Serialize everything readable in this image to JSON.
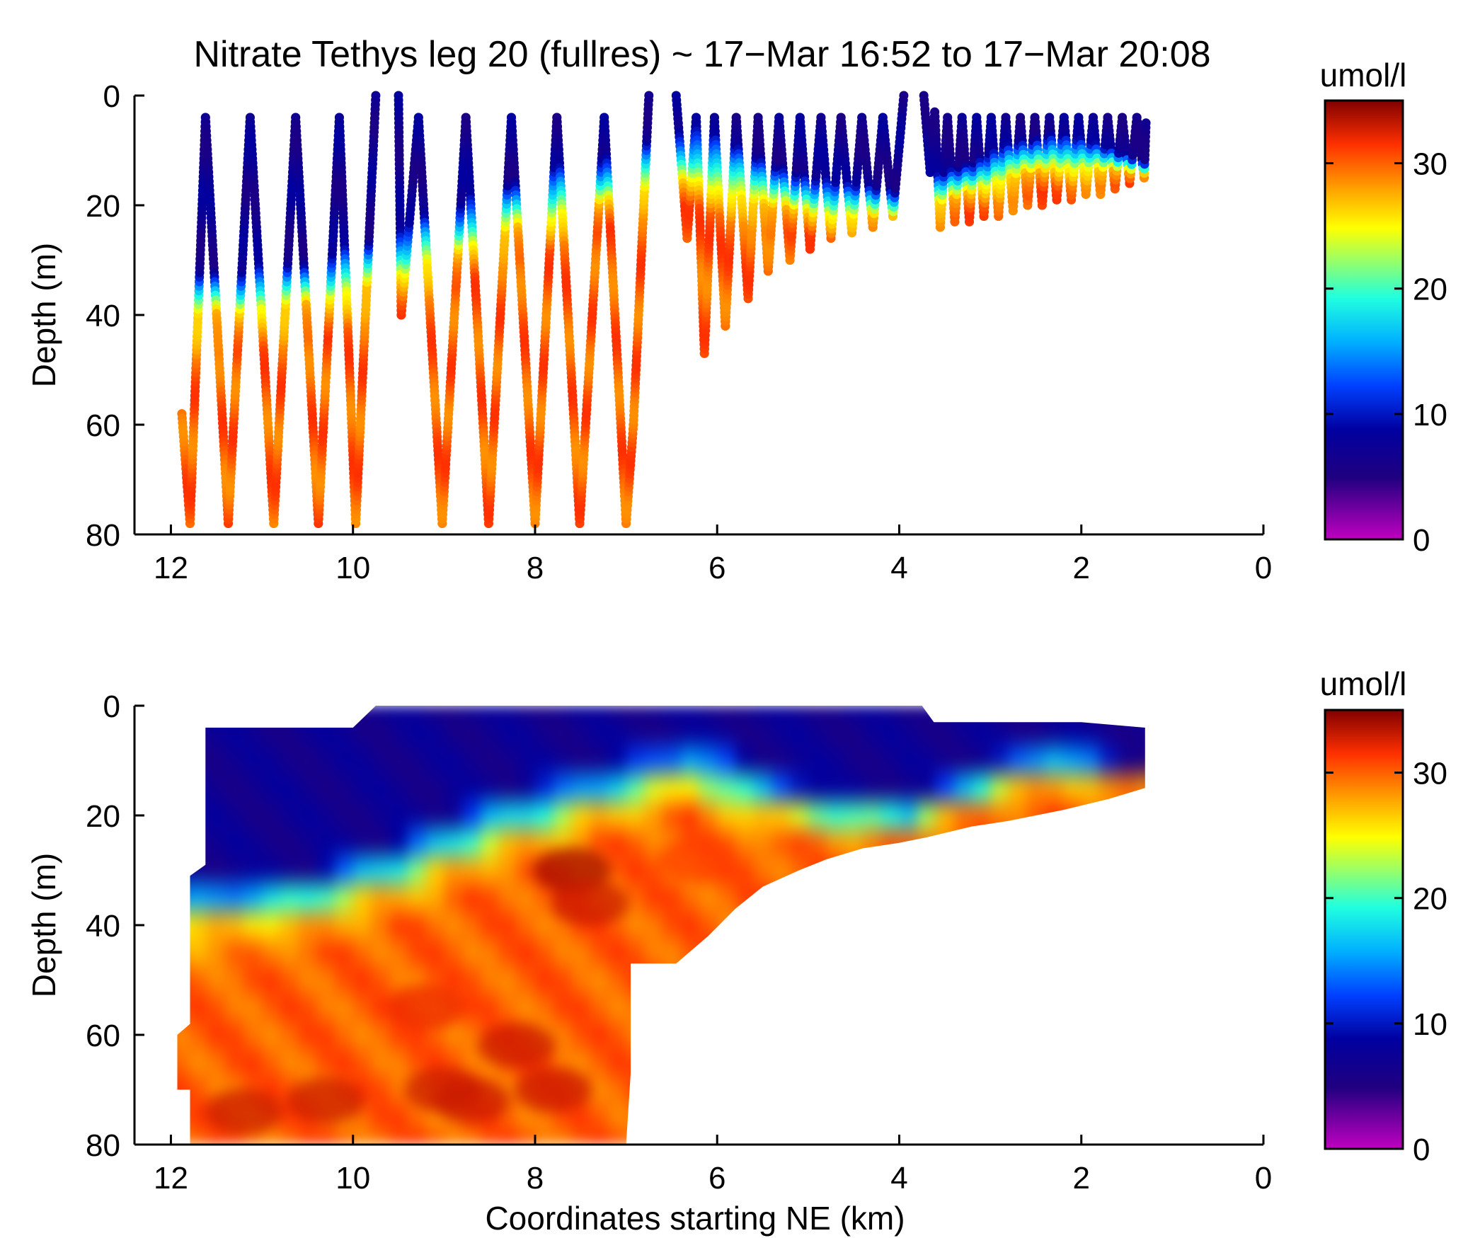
{
  "chart_data": [
    {
      "type": "scatter",
      "title": "Nitrate Tethys leg 20 (fullres) ~ 17−Mar 16:52 to 17−Mar 20:08",
      "xlabel": "",
      "ylabel": "Depth (m)",
      "xlim": [
        12.4,
        0
      ],
      "ylim": [
        0,
        80
      ],
      "y_reversed": true,
      "xticks": [
        "12",
        "10",
        "8",
        "6",
        "4",
        "2",
        "0"
      ],
      "yticks": [
        "0",
        "20",
        "40",
        "60",
        "80"
      ],
      "colorbar": {
        "label": "umol/l",
        "ticks": [
          "0",
          "10",
          "20",
          "30"
        ],
        "range": [
          0,
          35
        ],
        "colormap": "jet-magenta"
      },
      "track": [
        [
          11.88,
          58
        ],
        [
          11.79,
          78
        ],
        [
          11.62,
          4
        ],
        [
          11.37,
          78
        ],
        [
          11.13,
          4
        ],
        [
          10.87,
          78
        ],
        [
          10.63,
          4
        ],
        [
          10.38,
          78
        ],
        [
          10.15,
          4
        ],
        [
          9.97,
          78
        ],
        [
          9.75,
          0
        ],
        [
          9.5,
          0
        ],
        [
          9.47,
          40
        ],
        [
          9.28,
          4
        ],
        [
          9.02,
          78
        ],
        [
          8.76,
          4
        ],
        [
          8.51,
          78
        ],
        [
          8.26,
          4
        ],
        [
          8.0,
          78
        ],
        [
          7.76,
          4
        ],
        [
          7.51,
          78
        ],
        [
          7.24,
          4
        ],
        [
          7.0,
          78
        ],
        [
          6.92,
          60
        ],
        [
          6.75,
          0
        ],
        [
          6.45,
          0
        ],
        [
          6.33,
          26
        ],
        [
          6.23,
          4
        ],
        [
          6.14,
          47
        ],
        [
          6.03,
          4
        ],
        [
          5.91,
          42
        ],
        [
          5.79,
          4
        ],
        [
          5.66,
          37
        ],
        [
          5.55,
          4
        ],
        [
          5.44,
          32
        ],
        [
          5.32,
          4
        ],
        [
          5.2,
          30
        ],
        [
          5.09,
          4
        ],
        [
          4.98,
          28
        ],
        [
          4.86,
          4
        ],
        [
          4.75,
          26
        ],
        [
          4.64,
          4
        ],
        [
          4.52,
          25
        ],
        [
          4.41,
          4
        ],
        [
          4.29,
          24
        ],
        [
          4.18,
          4
        ],
        [
          4.07,
          22
        ],
        [
          3.95,
          0
        ],
        [
          3.73,
          0
        ],
        [
          3.66,
          14
        ],
        [
          3.61,
          3
        ],
        [
          3.55,
          24
        ],
        [
          3.47,
          4
        ],
        [
          3.39,
          23
        ],
        [
          3.31,
          4
        ],
        [
          3.23,
          23
        ],
        [
          3.15,
          4
        ],
        [
          3.07,
          22
        ],
        [
          2.99,
          4
        ],
        [
          2.91,
          22
        ],
        [
          2.83,
          4
        ],
        [
          2.75,
          21
        ],
        [
          2.67,
          4
        ],
        [
          2.59,
          20
        ],
        [
          2.51,
          4
        ],
        [
          2.43,
          20
        ],
        [
          2.35,
          4
        ],
        [
          2.27,
          19
        ],
        [
          2.19,
          4
        ],
        [
          2.11,
          19
        ],
        [
          2.03,
          4
        ],
        [
          1.95,
          18
        ],
        [
          1.87,
          4
        ],
        [
          1.79,
          18
        ],
        [
          1.71,
          4
        ],
        [
          1.63,
          17
        ],
        [
          1.55,
          4
        ],
        [
          1.47,
          16
        ],
        [
          1.39,
          4
        ],
        [
          1.31,
          15
        ],
        [
          1.29,
          5
        ]
      ]
    },
    {
      "type": "heatmap",
      "title": "",
      "xlabel": "Coordinates starting NE (km)",
      "ylabel": "Depth (m)",
      "xlim": [
        12.4,
        0
      ],
      "ylim": [
        0,
        80
      ],
      "y_reversed": true,
      "xticks": [
        "12",
        "10",
        "8",
        "6",
        "4",
        "2",
        "0"
      ],
      "yticks": [
        "0",
        "20",
        "40",
        "60",
        "80"
      ],
      "colorbar": {
        "label": "umol/l",
        "ticks": [
          "0",
          "10",
          "20",
          "30"
        ],
        "range": [
          0,
          35
        ],
        "colormap": "jet-magenta"
      },
      "coverage_outline": [
        [
          11.62,
          4
        ],
        [
          10.0,
          4
        ],
        [
          9.75,
          0
        ],
        [
          3.75,
          0
        ],
        [
          3.62,
          3
        ],
        [
          2.0,
          3
        ],
        [
          1.3,
          4
        ],
        [
          1.3,
          15
        ],
        [
          1.7,
          17
        ],
        [
          2.2,
          19
        ],
        [
          2.8,
          21
        ],
        [
          3.2,
          22
        ],
        [
          3.7,
          24
        ],
        [
          4.0,
          25
        ],
        [
          4.4,
          26
        ],
        [
          4.8,
          28
        ],
        [
          5.1,
          30
        ],
        [
          5.5,
          33
        ],
        [
          5.8,
          37
        ],
        [
          6.1,
          42
        ],
        [
          6.45,
          47
        ],
        [
          6.95,
          47
        ],
        [
          6.95,
          67
        ],
        [
          7.0,
          80
        ],
        [
          11.79,
          80
        ],
        [
          11.79,
          70
        ],
        [
          11.93,
          70
        ],
        [
          11.93,
          60
        ],
        [
          11.79,
          58
        ],
        [
          11.79,
          31
        ],
        [
          11.62,
          29
        ]
      ],
      "nitracline": [
        [
          11.7,
          32,
          40,
          8
        ],
        [
          10.5,
          30,
          38,
          7
        ],
        [
          9.5,
          24,
          33,
          7
        ],
        [
          8.5,
          16,
          26,
          6
        ],
        [
          7.8,
          13,
          22,
          6
        ],
        [
          7.0,
          9,
          18,
          5
        ],
        [
          6.3,
          5,
          15,
          5
        ],
        [
          5.5,
          11,
          20,
          5
        ],
        [
          4.6,
          16,
          22,
          4
        ],
        [
          3.9,
          17,
          22,
          4
        ],
        [
          3.0,
          10,
          16,
          4
        ],
        [
          2.3,
          6,
          13,
          4
        ],
        [
          1.3,
          12,
          14,
          2
        ]
      ],
      "hotspots": [
        [
          7.6,
          30,
          34
        ],
        [
          7.4,
          36,
          33
        ],
        [
          8.2,
          62,
          33
        ],
        [
          8.7,
          72,
          33
        ],
        [
          10.3,
          72,
          33
        ],
        [
          11.2,
          74,
          33
        ],
        [
          9.2,
          55,
          32
        ],
        [
          9.0,
          70,
          33
        ],
        [
          7.8,
          70,
          33
        ],
        [
          6.2,
          28,
          31
        ]
      ],
      "deep_value": 31
    }
  ]
}
